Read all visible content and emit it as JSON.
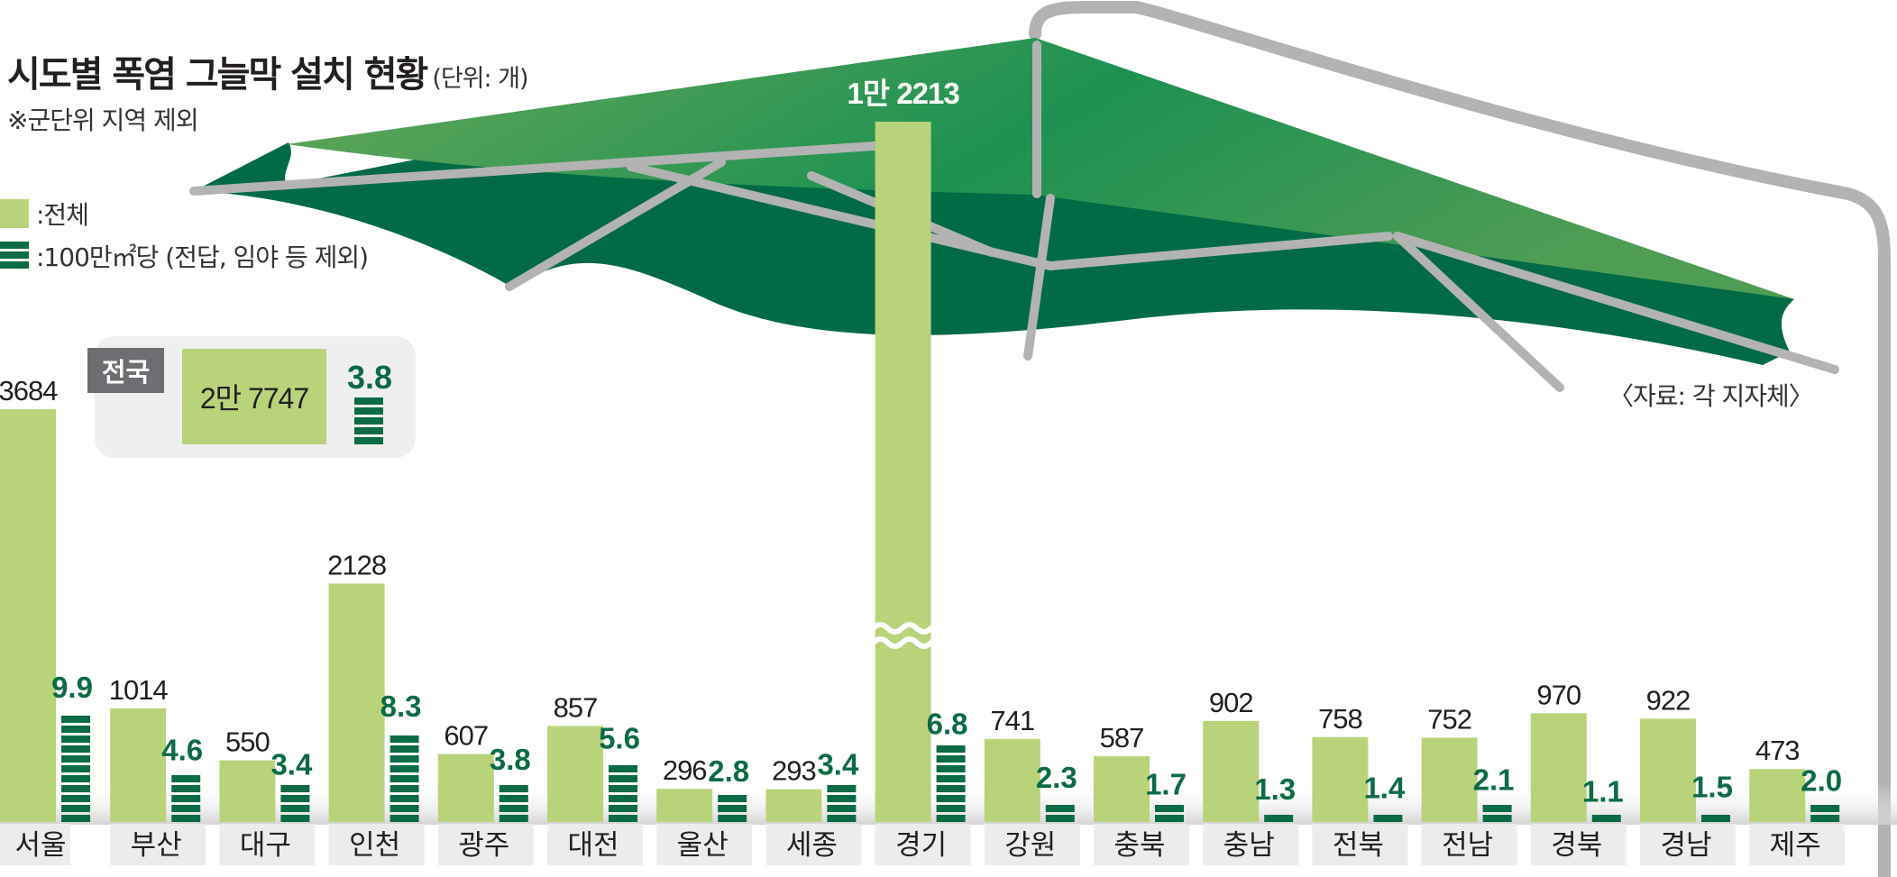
{
  "header": {
    "title": "시도별 폭염 그늘막 설치 현황",
    "unit": "(단위: 개)",
    "note": "※군단위 지역 제외"
  },
  "legend": {
    "total_label": ":전체",
    "density_label": ":100만㎡당 (전답, 임야 등 제외)"
  },
  "national": {
    "tag": "전국",
    "total": "2만 7747",
    "density": "3.8"
  },
  "source": "〈자료: 각 지자체〉",
  "colors": {
    "total_bar": "#b9d37a",
    "density_bar": "#0b6b45",
    "umbrella_top": "#1d9152",
    "umbrella_under": "#006b45",
    "frame": "#b3b3b3",
    "label_bg": "#ececec"
  },
  "chart_data": {
    "type": "bar",
    "categories": [
      "서울",
      "부산",
      "대구",
      "인천",
      "광주",
      "대전",
      "울산",
      "세종",
      "경기",
      "강원",
      "충북",
      "충남",
      "전북",
      "전남",
      "경북",
      "경남",
      "제주"
    ],
    "series": [
      {
        "name": "전체",
        "values": [
          3684,
          1014,
          550,
          2128,
          607,
          857,
          296,
          293,
          12213,
          741,
          587,
          902,
          758,
          752,
          970,
          922,
          473
        ],
        "labels": [
          "3684",
          "1014",
          "550",
          "2128",
          "607",
          "857",
          "296",
          "293",
          "1만 2213",
          "741",
          "587",
          "902",
          "758",
          "752",
          "970",
          "922",
          "473"
        ]
      },
      {
        "name": "100만㎡당",
        "values": [
          9.9,
          4.6,
          3.4,
          8.3,
          3.8,
          5.6,
          2.8,
          3.4,
          6.8,
          2.3,
          1.7,
          1.3,
          1.4,
          2.1,
          1.1,
          1.5,
          2.0
        ],
        "labels": [
          "9.9",
          "4.6",
          "3.4",
          "8.3",
          "3.8",
          "5.6",
          "2.8",
          "3.4",
          "6.8",
          "2.3",
          "1.7",
          "1.3",
          "1.4",
          "2.1",
          "1.1",
          "1.5",
          "2.0"
        ]
      }
    ],
    "broken_bar": "경기",
    "ylabel": "",
    "xlabel": ""
  }
}
